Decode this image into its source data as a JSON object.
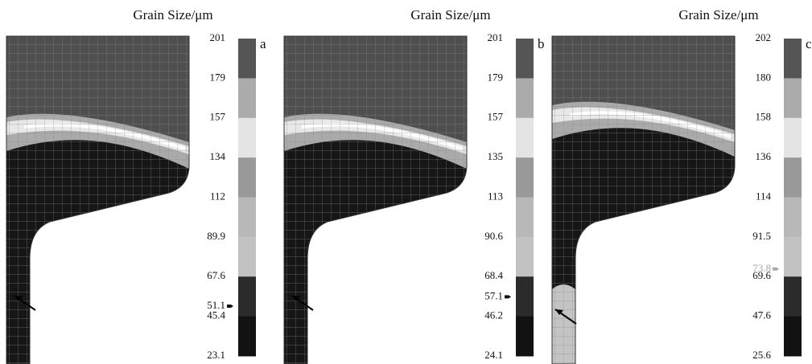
{
  "panels": [
    {
      "title": "Grain Size/μm",
      "label": "a",
      "ticks": [
        201,
        179,
        157,
        134,
        112,
        89.9,
        67.6,
        45.4,
        23.1
      ],
      "marker": 51.1
    },
    {
      "title": "Grain Size/μm",
      "label": "b",
      "ticks": [
        201,
        179,
        157,
        135,
        113,
        90.6,
        68.4,
        46.2,
        24.1
      ],
      "marker": 57.1
    },
    {
      "title": "Grain Size/μm",
      "label": "c",
      "ticks": [
        202,
        180,
        158,
        136,
        114,
        91.5,
        69.6,
        47.6,
        25.6
      ],
      "marker": 73.8
    }
  ]
}
